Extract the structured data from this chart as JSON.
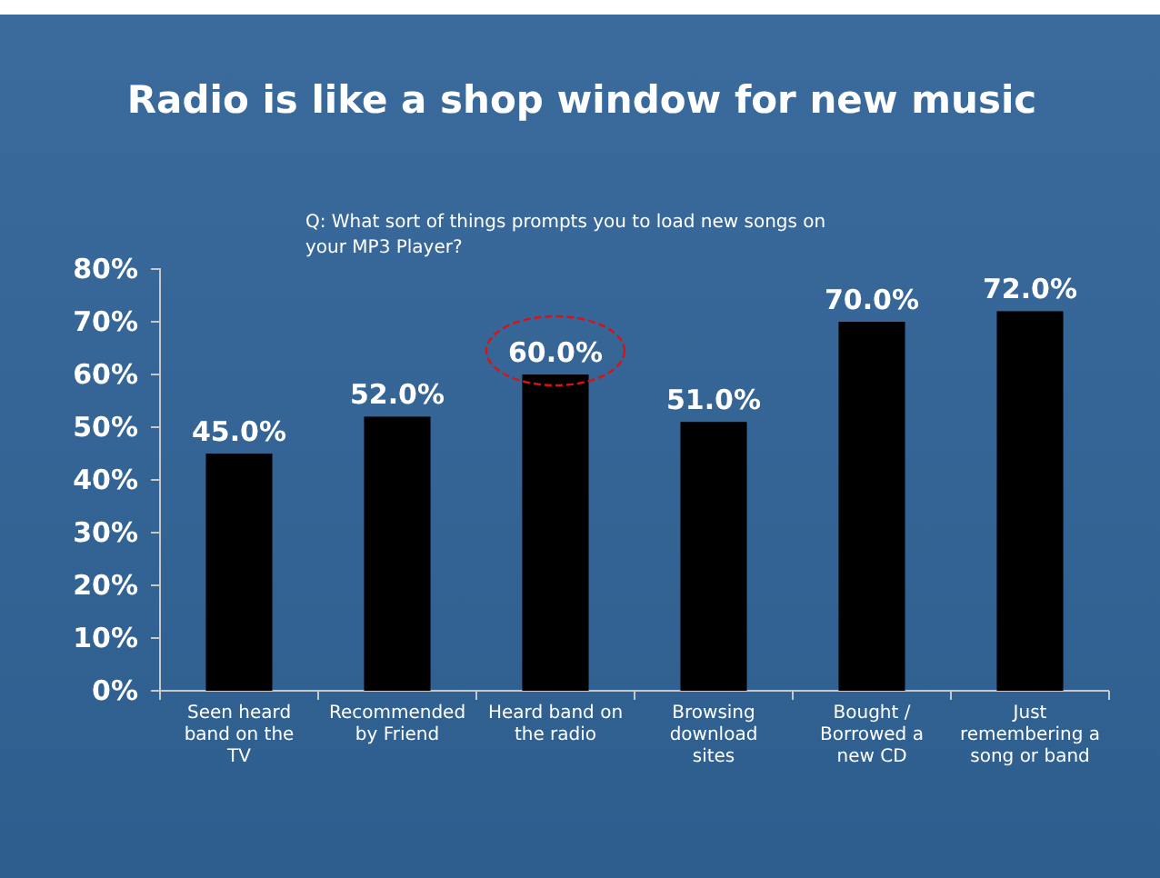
{
  "chart_data": {
    "type": "bar",
    "title": "Radio is like a shop window for new music",
    "subtitle": "Q: What sort of things prompts you to load new songs on your MP3 Player?",
    "categories": [
      "Seen heard band on the TV",
      "Recommended by Friend",
      "Heard band on the radio",
      "Browsing download sites",
      "Bought / Borrowed a new CD",
      "Just remembering a song or band"
    ],
    "values": [
      45,
      52,
      60,
      51,
      70,
      72
    ],
    "value_labels": [
      "45.0%",
      "52.0%",
      "60.0%",
      "51.0%",
      "70.0%",
      "72.0%"
    ],
    "color": "#000000",
    "ylim": [
      0,
      80
    ],
    "yticks": [
      {
        "value": 0,
        "label": "0%"
      },
      {
        "value": 10,
        "label": "10%"
      },
      {
        "value": 20,
        "label": "20%"
      },
      {
        "value": 30,
        "label": "30%"
      },
      {
        "value": 40,
        "label": "40%"
      },
      {
        "value": 50,
        "label": "50%"
      },
      {
        "value": 60,
        "label": "60%"
      },
      {
        "value": 70,
        "label": "70%"
      },
      {
        "value": 80,
        "label": "80%"
      }
    ],
    "grid": false
  }
}
